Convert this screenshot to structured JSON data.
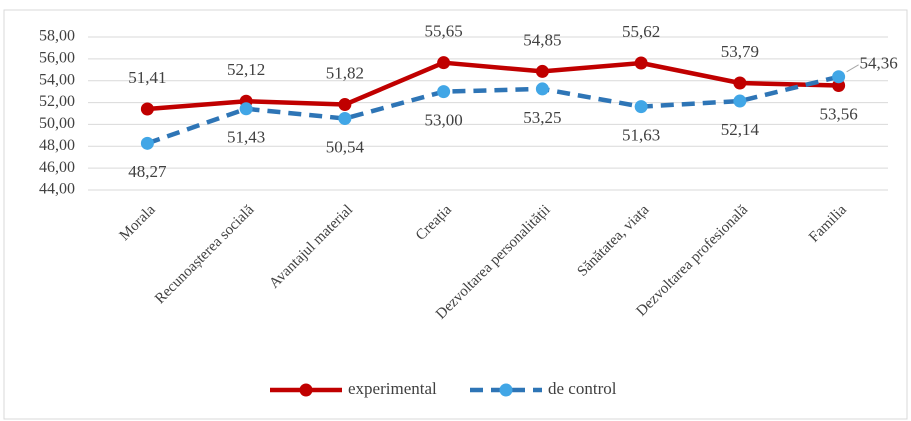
{
  "chart_data": {
    "type": "line",
    "categories": [
      "Morala",
      "Recunoașterea socială",
      "Avantajul material",
      "Creația",
      "Dezvoltarea personalității",
      "Sănătatea, viața",
      "Dezvoltarea profesională",
      "Familia"
    ],
    "series": [
      {
        "name": "experimental",
        "color": "#c00000",
        "dashed": false,
        "values": [
          51.41,
          52.12,
          51.82,
          55.65,
          54.85,
          55.62,
          53.79,
          53.56
        ],
        "value_labels": [
          "51,41",
          "52,12",
          "51,82",
          "55,65",
          "54,85",
          "55,62",
          "53,79",
          "53,56"
        ]
      },
      {
        "name": "de control",
        "color": "#2e75b6",
        "marker_color": "#41a6e6",
        "dashed": true,
        "values": [
          48.27,
          51.43,
          50.54,
          53.0,
          53.25,
          51.63,
          52.14,
          54.36
        ],
        "value_labels": [
          "48,27",
          "51,43",
          "50,54",
          "53,00",
          "53,25",
          "51,63",
          "52,14",
          "54,36"
        ]
      }
    ],
    "ylim": [
      44,
      58
    ],
    "yticks": [
      {
        "value": 44,
        "label": "44,00"
      },
      {
        "value": 46,
        "label": "46,00"
      },
      {
        "value": 48,
        "label": "48,00"
      },
      {
        "value": 50,
        "label": "50,00"
      },
      {
        "value": 52,
        "label": "52,00"
      },
      {
        "value": 54,
        "label": "54,00"
      },
      {
        "value": 56,
        "label": "56,00"
      },
      {
        "value": 58,
        "label": "58,00"
      }
    ],
    "grid": true,
    "legend": "bottom"
  }
}
